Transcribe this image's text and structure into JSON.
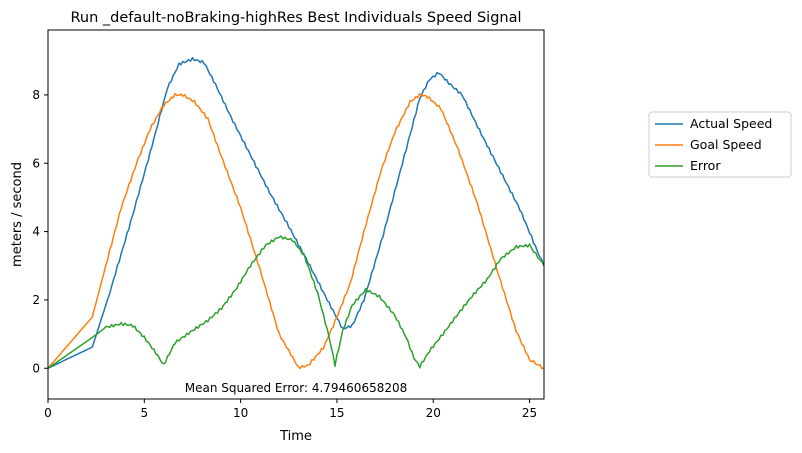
{
  "chart_data": {
    "type": "line",
    "title": "Run _default-noBraking-highRes Best Individuals Speed Signal",
    "xlabel": "Time",
    "ylabel": "meters / second",
    "xlim": [
      0,
      25.75
    ],
    "ylim": [
      -0.9,
      9.9
    ],
    "xticks": [
      0,
      5,
      10,
      15,
      20,
      25
    ],
    "yticks": [
      0,
      2,
      4,
      6,
      8
    ],
    "grid": false,
    "legend_position": "right-outside",
    "annotation": "Mean Squared Error: 4.79460658208",
    "series": [
      {
        "name": "Actual Speed",
        "color": "#1f77b4",
        "points": [
          [
            0,
            0
          ],
          [
            2.3,
            0.62
          ],
          [
            3.2,
            2.2
          ],
          [
            4.3,
            4.3
          ],
          [
            5.3,
            6.3
          ],
          [
            6.2,
            8.2
          ],
          [
            6.8,
            8.9
          ],
          [
            7.5,
            9.05
          ],
          [
            8.1,
            8.95
          ],
          [
            8.7,
            8.3
          ],
          [
            9.5,
            7.35
          ],
          [
            10.5,
            6.25
          ],
          [
            11.5,
            5.15
          ],
          [
            12.5,
            4.15
          ],
          [
            13.5,
            3.1
          ],
          [
            14.5,
            2.0
          ],
          [
            15.3,
            1.15
          ],
          [
            15.8,
            1.25
          ],
          [
            16.4,
            2.0
          ],
          [
            17.4,
            3.9
          ],
          [
            18.4,
            6.0
          ],
          [
            19.3,
            7.9
          ],
          [
            19.8,
            8.45
          ],
          [
            20.3,
            8.65
          ],
          [
            20.8,
            8.35
          ],
          [
            21.5,
            8.0
          ],
          [
            22.5,
            6.85
          ],
          [
            23.5,
            5.75
          ],
          [
            24.5,
            4.65
          ],
          [
            25.5,
            3.3
          ],
          [
            25.75,
            3.0
          ]
        ]
      },
      {
        "name": "Goal Speed",
        "color": "#ff7f0e",
        "points": [
          [
            0,
            0
          ],
          [
            2.3,
            1.5
          ],
          [
            3.0,
            3.0
          ],
          [
            3.8,
            4.7
          ],
          [
            4.6,
            6.0
          ],
          [
            5.3,
            7.0
          ],
          [
            6.0,
            7.7
          ],
          [
            6.6,
            8.0
          ],
          [
            7.0,
            8.0
          ],
          [
            7.6,
            7.8
          ],
          [
            8.3,
            7.3
          ],
          [
            9.0,
            6.2
          ],
          [
            10.0,
            4.7
          ],
          [
            11.0,
            2.9
          ],
          [
            12.0,
            1.0
          ],
          [
            13.0,
            0.02
          ],
          [
            13.5,
            0.08
          ],
          [
            14.3,
            0.6
          ],
          [
            15.0,
            1.5
          ],
          [
            15.7,
            2.5
          ],
          [
            16.5,
            4.2
          ],
          [
            17.3,
            5.8
          ],
          [
            18.0,
            6.9
          ],
          [
            18.8,
            7.8
          ],
          [
            19.3,
            8.0
          ],
          [
            19.7,
            7.95
          ],
          [
            20.4,
            7.6
          ],
          [
            21.3,
            6.4
          ],
          [
            22.3,
            4.8
          ],
          [
            23.3,
            2.9
          ],
          [
            24.3,
            1.1
          ],
          [
            25.0,
            0.25
          ],
          [
            25.75,
            0.0
          ]
        ]
      },
      {
        "name": "Error",
        "color": "#2ca02c",
        "points": [
          [
            0,
            0
          ],
          [
            2.3,
            0.9
          ],
          [
            3.0,
            1.2
          ],
          [
            3.8,
            1.3
          ],
          [
            4.4,
            1.25
          ],
          [
            5.0,
            0.9
          ],
          [
            5.6,
            0.45
          ],
          [
            6.0,
            0.1
          ],
          [
            6.6,
            0.75
          ],
          [
            7.5,
            1.1
          ],
          [
            8.3,
            1.4
          ],
          [
            9.0,
            1.75
          ],
          [
            9.8,
            2.35
          ],
          [
            10.5,
            3.0
          ],
          [
            11.3,
            3.6
          ],
          [
            12.0,
            3.85
          ],
          [
            12.7,
            3.75
          ],
          [
            13.3,
            3.3
          ],
          [
            14.0,
            2.2
          ],
          [
            14.6,
            0.9
          ],
          [
            14.9,
            0.1
          ],
          [
            15.3,
            1.1
          ],
          [
            15.8,
            1.85
          ],
          [
            16.5,
            2.3
          ],
          [
            17.2,
            2.1
          ],
          [
            18.0,
            1.55
          ],
          [
            18.6,
            0.9
          ],
          [
            19.0,
            0.3
          ],
          [
            19.3,
            0.05
          ],
          [
            19.8,
            0.5
          ],
          [
            20.5,
            1.0
          ],
          [
            21.3,
            1.6
          ],
          [
            22.0,
            2.1
          ],
          [
            22.8,
            2.6
          ],
          [
            23.5,
            3.2
          ],
          [
            24.3,
            3.55
          ],
          [
            25.0,
            3.6
          ],
          [
            25.75,
            3.0
          ]
        ]
      }
    ]
  }
}
